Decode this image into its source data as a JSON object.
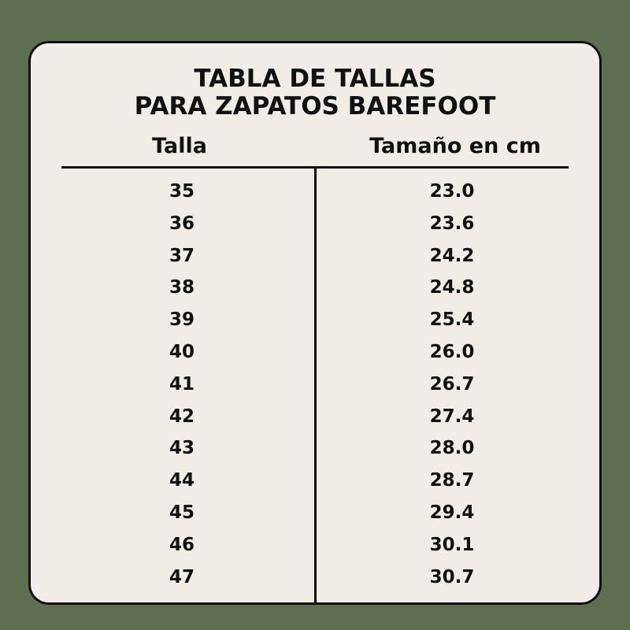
{
  "title": {
    "line1": "TABLA DE TALLAS",
    "line2": "PARA ZAPATOS BAREFOOT"
  },
  "columns": [
    "Talla",
    "Tamaño en cm"
  ],
  "rows": [
    [
      "35",
      "23.0"
    ],
    [
      "36",
      "23.6"
    ],
    [
      "37",
      "24.2"
    ],
    [
      "38",
      "24.8"
    ],
    [
      "39",
      "25.4"
    ],
    [
      "40",
      "26.0"
    ],
    [
      "41",
      "26.7"
    ],
    [
      "42",
      "27.4"
    ],
    [
      "43",
      "28.0"
    ],
    [
      "44",
      "28.7"
    ],
    [
      "45",
      "29.4"
    ],
    [
      "46",
      "30.1"
    ],
    [
      "47",
      "30.7"
    ]
  ],
  "colors": {
    "background": "#5e6e50",
    "card": "#f1ede6",
    "text": "#111111"
  }
}
